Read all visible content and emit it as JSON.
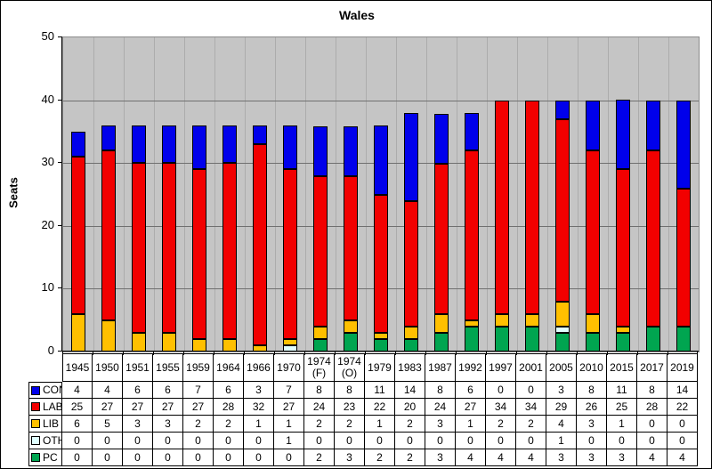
{
  "chart_data": {
    "type": "bar",
    "stacked": true,
    "title": "Wales",
    "ylabel": "Seats",
    "ylim": [
      0,
      50
    ],
    "yticks": [
      0,
      10,
      20,
      30,
      40,
      50
    ],
    "grid": "horizontal-major and vertical-category",
    "legend_position": "left-column-of-data-table",
    "categories": [
      "1945",
      "1950",
      "1951",
      "1955",
      "1959",
      "1964",
      "1966",
      "1970",
      "1974 (F)",
      "1974 (O)",
      "1979",
      "1983",
      "1987",
      "1992",
      "1997",
      "2001",
      "2005",
      "2010",
      "2015",
      "2017",
      "2019"
    ],
    "stack_order_bottom_to_top": [
      "PC",
      "OTH",
      "LIB",
      "LAB",
      "CON"
    ],
    "series": [
      {
        "name": "CON",
        "color": "#0000EB",
        "values": [
          4,
          4,
          6,
          6,
          7,
          6,
          3,
          7,
          8,
          8,
          11,
          14,
          8,
          6,
          0,
          0,
          3,
          8,
          11,
          8,
          14
        ]
      },
      {
        "name": "LAB",
        "color": "#F20000",
        "values": [
          25,
          27,
          27,
          27,
          27,
          28,
          32,
          27,
          24,
          23,
          22,
          20,
          24,
          27,
          34,
          34,
          29,
          26,
          25,
          28,
          22
        ]
      },
      {
        "name": "LIB",
        "color": "#FFC000",
        "values": [
          6,
          5,
          3,
          3,
          2,
          2,
          1,
          1,
          2,
          2,
          1,
          2,
          3,
          1,
          2,
          2,
          4,
          3,
          1,
          0,
          0
        ]
      },
      {
        "name": "OTH",
        "color": "#E0FFFF",
        "values": [
          0,
          0,
          0,
          0,
          0,
          0,
          0,
          1,
          0,
          0,
          0,
          0,
          0,
          0,
          0,
          0,
          1,
          0,
          0,
          0,
          0
        ]
      },
      {
        "name": "PC",
        "color": "#00A550",
        "values": [
          0,
          0,
          0,
          0,
          0,
          0,
          0,
          0,
          2,
          3,
          2,
          2,
          3,
          4,
          4,
          4,
          3,
          3,
          3,
          4,
          4
        ]
      }
    ]
  },
  "colors": {
    "plot_background": "#C5C5C5",
    "major_gridline": "#707070",
    "category_gridline": "#ACACAC",
    "plot_border": "#8C8C8C",
    "axis": "#000000",
    "table_border": "#000000",
    "page_background": "#FFFFFF"
  }
}
